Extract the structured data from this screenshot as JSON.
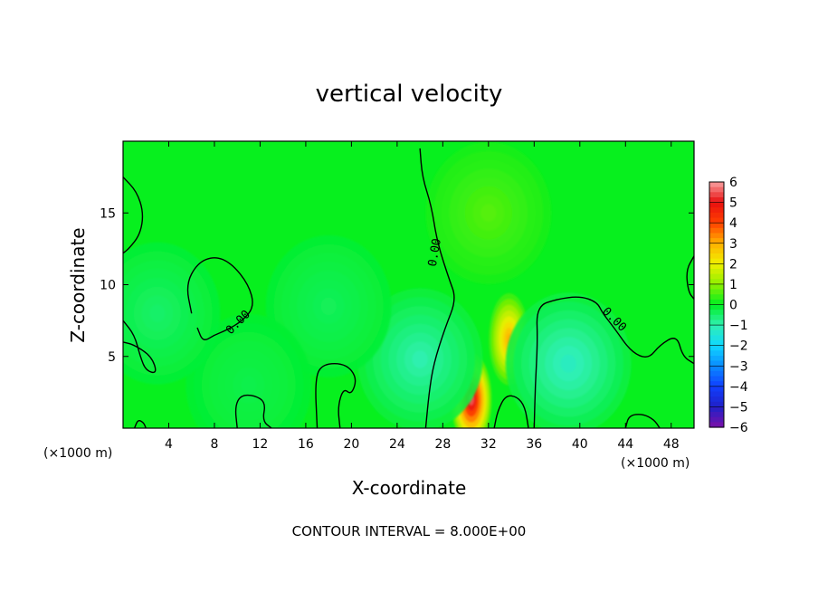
{
  "chart_data": {
    "type": "heatmap",
    "title": "vertical velocity",
    "xlabel": "X-coordinate",
    "ylabel": "Z-coordinate",
    "x_unit_left": "(×1000 m)",
    "x_unit_right": "(×1000 m)",
    "xlim": [
      0,
      50
    ],
    "ylim": [
      0,
      20
    ],
    "x_ticks": [
      4,
      8,
      12,
      16,
      20,
      24,
      28,
      32,
      36,
      40,
      44,
      48
    ],
    "y_ticks": [
      5,
      10,
      15
    ],
    "colorbar": {
      "min": -6,
      "max": 6,
      "ticks": [
        6,
        5,
        4,
        3,
        2,
        1,
        0,
        -1,
        -2,
        -3,
        -4,
        -5,
        -6
      ],
      "tick_labels": [
        "6",
        "5",
        "4",
        "3",
        "2",
        "1",
        "0",
        "−1",
        "−2",
        "−3",
        "−4",
        "−5",
        "−6"
      ]
    },
    "features": [
      {
        "x": 30.5,
        "z": 2.0,
        "value": 5.5
      },
      {
        "x": 33.8,
        "z": 6.2,
        "value": 3.0
      },
      {
        "x": 26.0,
        "z": 4.8,
        "value": -1.0
      },
      {
        "x": 39.0,
        "z": 4.5,
        "value": -1.2
      },
      {
        "x": 18.0,
        "z": 8.5,
        "value": -0.4
      },
      {
        "x": 11.0,
        "z": 3.0,
        "value": -0.3
      },
      {
        "x": 3.0,
        "z": 8.0,
        "value": -0.5
      },
      {
        "x": 32.0,
        "z": 15.0,
        "value": 0.6
      }
    ],
    "contour_label": "0.00",
    "annotation": "CONTOUR INTERVAL = 8.000E+00"
  }
}
